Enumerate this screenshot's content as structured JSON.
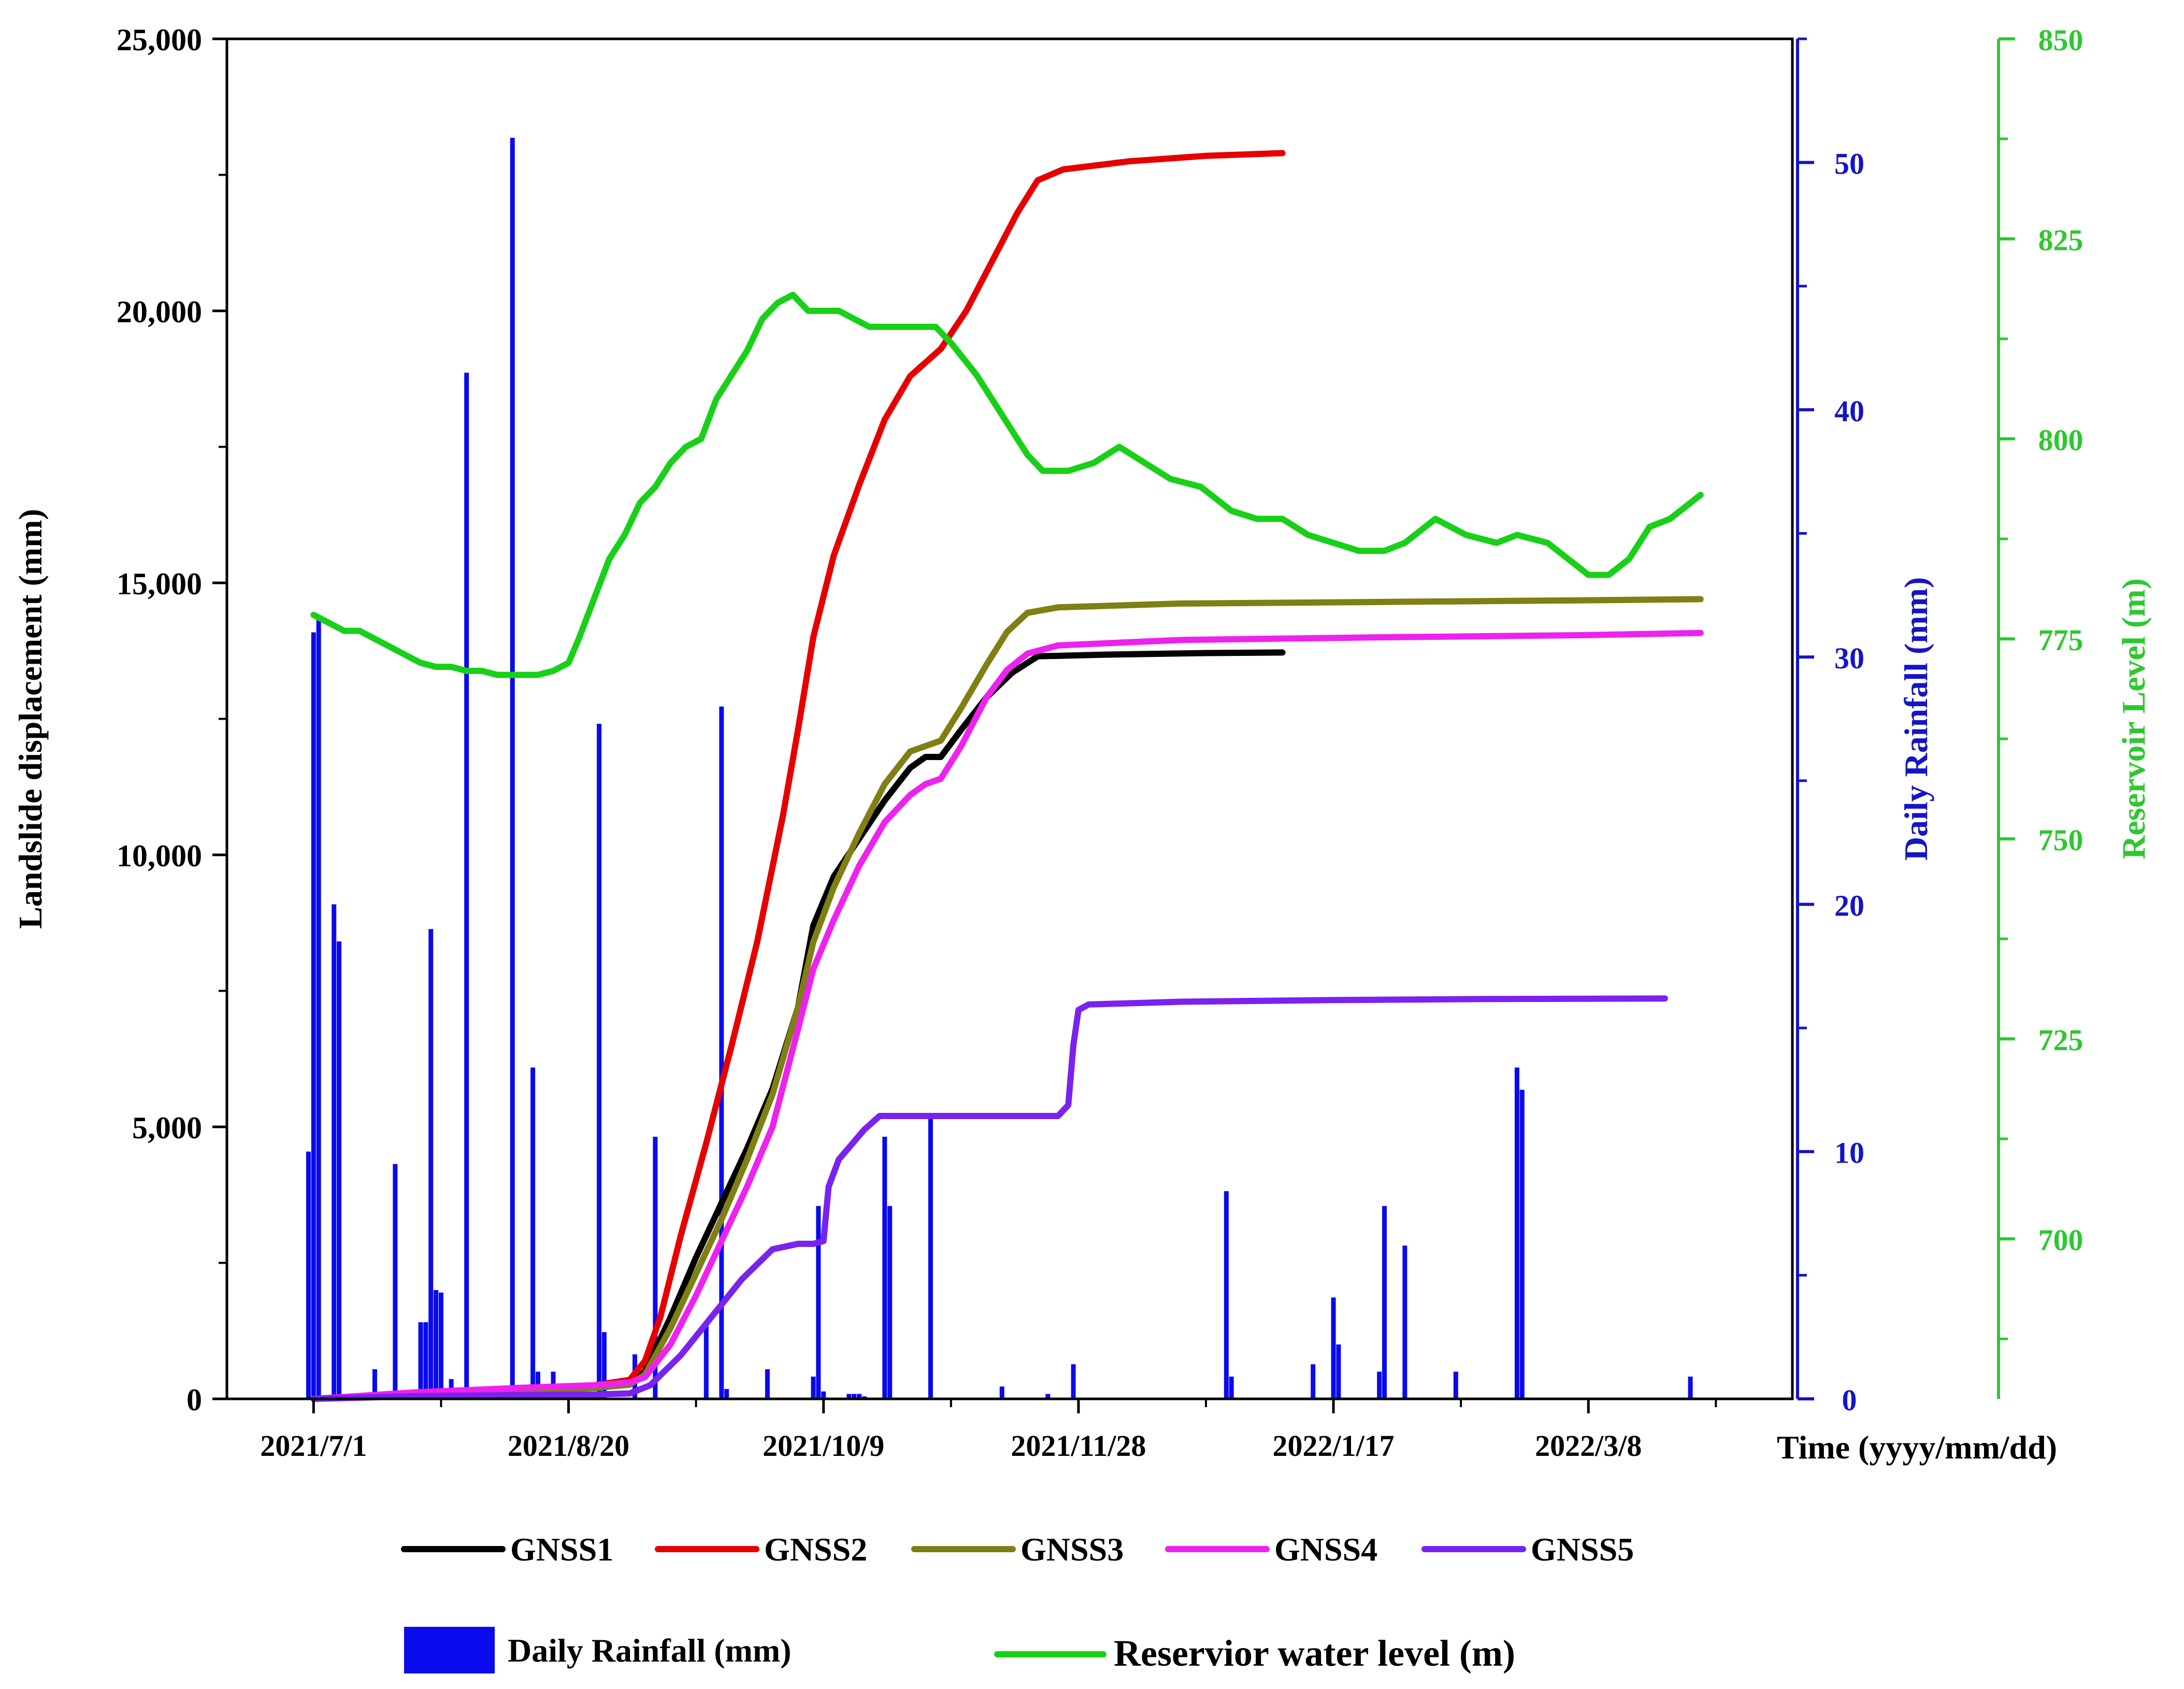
{
  "chart_data": {
    "type": "line",
    "title": "",
    "xlabel": "Time (yyyy/mm/dd)",
    "x_ticks": [
      {
        "label": "2021/7/1",
        "day": 0
      },
      {
        "label": "2021/8/20",
        "day": 50
      },
      {
        "label": "2021/10/9",
        "day": 100
      },
      {
        "label": "2021/11/28",
        "day": 150
      },
      {
        "label": "2022/1/17",
        "day": 200
      },
      {
        "label": "2022/3/8",
        "day": 250
      }
    ],
    "xlim_days": [
      -17,
      290
    ],
    "y_axes": {
      "displacement": {
        "label": "Landslide displacement (mm)",
        "ylim": [
          0,
          25000
        ],
        "ticks": [
          0,
          5000,
          10000,
          15000,
          20000,
          25000
        ],
        "tick_labels": [
          "0",
          "5,000",
          "10,000",
          "15,000",
          "20,000",
          "25,000"
        ],
        "color": "#000000"
      },
      "rainfall": {
        "label": "Daily Rainfall (mm)",
        "ylim": [
          0,
          55
        ],
        "ticks": [
          0,
          10,
          20,
          30,
          40,
          50
        ],
        "color": "#1414c8"
      },
      "reservoir": {
        "label": "Reservoir Level (m)",
        "ylim": [
          680,
          850
        ],
        "ticks": [
          700,
          725,
          750,
          775,
          800,
          825,
          850
        ],
        "color": "#2ec82e"
      }
    },
    "series": [
      {
        "name": "GNSS1",
        "axis": "displacement",
        "color": "#000000",
        "points": [
          [
            0,
            0
          ],
          [
            20,
            100
          ],
          [
            40,
            180
          ],
          [
            55,
            230
          ],
          [
            62,
            300
          ],
          [
            65,
            500
          ],
          [
            70,
            1500
          ],
          [
            75,
            2600
          ],
          [
            80,
            3600
          ],
          [
            85,
            4600
          ],
          [
            90,
            5700
          ],
          [
            95,
            7200
          ],
          [
            98,
            8700
          ],
          [
            102,
            9600
          ],
          [
            107,
            10300
          ],
          [
            112,
            11000
          ],
          [
            117,
            11600
          ],
          [
            120,
            11800
          ],
          [
            123,
            11800
          ],
          [
            127,
            12300
          ],
          [
            132,
            12900
          ],
          [
            137,
            13350
          ],
          [
            142,
            13650
          ],
          [
            155,
            13680
          ],
          [
            175,
            13710
          ],
          [
            190,
            13720
          ]
        ]
      },
      {
        "name": "GNSS2",
        "axis": "displacement",
        "color": "#e60000",
        "points": [
          [
            0,
            0
          ],
          [
            20,
            100
          ],
          [
            40,
            200
          ],
          [
            55,
            250
          ],
          [
            62,
            350
          ],
          [
            65,
            700
          ],
          [
            68,
            1500
          ],
          [
            72,
            3000
          ],
          [
            77,
            4700
          ],
          [
            82,
            6500
          ],
          [
            87,
            8400
          ],
          [
            92,
            10700
          ],
          [
            95,
            12300
          ],
          [
            98,
            14000
          ],
          [
            102,
            15500
          ],
          [
            107,
            16800
          ],
          [
            112,
            18000
          ],
          [
            117,
            18800
          ],
          [
            123,
            19300
          ],
          [
            128,
            20000
          ],
          [
            133,
            20900
          ],
          [
            138,
            21800
          ],
          [
            142,
            22400
          ],
          [
            147,
            22600
          ],
          [
            160,
            22750
          ],
          [
            175,
            22850
          ],
          [
            190,
            22900
          ]
        ]
      },
      {
        "name": "GNSS3",
        "axis": "displacement",
        "color": "#7f7f14",
        "points": [
          [
            0,
            0
          ],
          [
            20,
            80
          ],
          [
            40,
            150
          ],
          [
            55,
            200
          ],
          [
            62,
            260
          ],
          [
            65,
            450
          ],
          [
            70,
            1300
          ],
          [
            75,
            2300
          ],
          [
            80,
            3300
          ],
          [
            85,
            4400
          ],
          [
            90,
            5600
          ],
          [
            95,
            7200
          ],
          [
            98,
            8400
          ],
          [
            102,
            9400
          ],
          [
            107,
            10400
          ],
          [
            112,
            11300
          ],
          [
            117,
            11900
          ],
          [
            120,
            12000
          ],
          [
            123,
            12100
          ],
          [
            127,
            12700
          ],
          [
            132,
            13500
          ],
          [
            136,
            14100
          ],
          [
            140,
            14450
          ],
          [
            146,
            14550
          ],
          [
            170,
            14620
          ],
          [
            210,
            14650
          ],
          [
            250,
            14680
          ],
          [
            272,
            14700
          ]
        ]
      },
      {
        "name": "GNSS4",
        "axis": "displacement",
        "color": "#ee22ee",
        "points": [
          [
            0,
            0
          ],
          [
            20,
            120
          ],
          [
            40,
            200
          ],
          [
            55,
            250
          ],
          [
            62,
            300
          ],
          [
            65,
            400
          ],
          [
            70,
            1000
          ],
          [
            75,
            1900
          ],
          [
            80,
            2900
          ],
          [
            85,
            3900
          ],
          [
            90,
            5000
          ],
          [
            95,
            6800
          ],
          [
            98,
            7900
          ],
          [
            102,
            8800
          ],
          [
            107,
            9800
          ],
          [
            112,
            10600
          ],
          [
            117,
            11100
          ],
          [
            120,
            11300
          ],
          [
            123,
            11400
          ],
          [
            127,
            12000
          ],
          [
            132,
            12900
          ],
          [
            136,
            13400
          ],
          [
            140,
            13700
          ],
          [
            146,
            13850
          ],
          [
            170,
            13950
          ],
          [
            210,
            14000
          ],
          [
            250,
            14040
          ],
          [
            272,
            14080
          ]
        ]
      },
      {
        "name": "GNSS5",
        "axis": "displacement",
        "color": "#7a22ee",
        "points": [
          [
            0,
            0
          ],
          [
            20,
            50
          ],
          [
            40,
            70
          ],
          [
            55,
            80
          ],
          [
            62,
            100
          ],
          [
            66,
            250
          ],
          [
            72,
            800
          ],
          [
            78,
            1500
          ],
          [
            84,
            2200
          ],
          [
            90,
            2750
          ],
          [
            95,
            2850
          ],
          [
            98,
            2850
          ],
          [
            100,
            2900
          ],
          [
            101,
            3900
          ],
          [
            103,
            4400
          ],
          [
            108,
            4950
          ],
          [
            111,
            5200
          ],
          [
            146,
            5200
          ],
          [
            148,
            5400
          ],
          [
            149,
            6500
          ],
          [
            150,
            7150
          ],
          [
            152,
            7250
          ],
          [
            170,
            7300
          ],
          [
            200,
            7330
          ],
          [
            230,
            7350
          ],
          [
            265,
            7360
          ]
        ]
      },
      {
        "name": "Reservior water level (m)",
        "axis": "reservoir",
        "color": "#18d018",
        "points": [
          [
            0,
            778
          ],
          [
            3,
            777
          ],
          [
            6,
            776
          ],
          [
            9,
            776
          ],
          [
            12,
            775
          ],
          [
            15,
            774
          ],
          [
            18,
            773
          ],
          [
            21,
            772
          ],
          [
            24,
            771.5
          ],
          [
            27,
            771.5
          ],
          [
            30,
            771
          ],
          [
            33,
            771
          ],
          [
            36,
            770.5
          ],
          [
            40,
            770.5
          ],
          [
            44,
            770.5
          ],
          [
            47,
            771
          ],
          [
            50,
            772
          ],
          [
            52,
            775
          ],
          [
            55,
            780
          ],
          [
            58,
            785
          ],
          [
            61,
            788
          ],
          [
            64,
            792
          ],
          [
            67,
            794
          ],
          [
            70,
            797
          ],
          [
            73,
            799
          ],
          [
            76,
            800
          ],
          [
            79,
            805
          ],
          [
            82,
            808
          ],
          [
            85,
            811
          ],
          [
            88,
            815
          ],
          [
            91,
            817
          ],
          [
            94,
            818
          ],
          [
            97,
            816
          ],
          [
            100,
            816
          ],
          [
            103,
            816
          ],
          [
            106,
            815
          ],
          [
            109,
            814
          ],
          [
            114,
            814
          ],
          [
            119,
            814
          ],
          [
            122,
            814
          ],
          [
            125,
            812
          ],
          [
            130,
            808
          ],
          [
            135,
            803
          ],
          [
            140,
            798
          ],
          [
            143,
            796
          ],
          [
            148,
            796
          ],
          [
            153,
            797
          ],
          [
            158,
            799
          ],
          [
            163,
            797
          ],
          [
            168,
            795
          ],
          [
            174,
            794
          ],
          [
            180,
            791
          ],
          [
            185,
            790
          ],
          [
            190,
            790
          ],
          [
            195,
            788
          ],
          [
            200,
            787
          ],
          [
            205,
            786
          ],
          [
            210,
            786
          ],
          [
            214,
            787
          ],
          [
            220,
            790
          ],
          [
            226,
            788
          ],
          [
            232,
            787
          ],
          [
            236,
            788
          ],
          [
            242,
            787
          ],
          [
            246,
            785
          ],
          [
            250,
            783
          ],
          [
            254,
            783
          ],
          [
            258,
            785
          ],
          [
            262,
            789
          ],
          [
            266,
            790
          ],
          [
            270,
            792
          ],
          [
            272,
            793
          ]
        ]
      }
    ],
    "rainfall": {
      "name": "Daily Rainfall (mm)",
      "axis": "rainfall",
      "color": "#0a0aee",
      "bars": [
        [
          -1,
          10
        ],
        [
          0,
          31
        ],
        [
          1,
          31.5
        ],
        [
          4,
          20
        ],
        [
          5,
          18.5
        ],
        [
          12,
          1.2
        ],
        [
          16,
          9.5
        ],
        [
          17,
          0.3
        ],
        [
          21,
          3.1
        ],
        [
          22,
          3.1
        ],
        [
          23,
          19
        ],
        [
          24,
          4.4
        ],
        [
          25,
          4.3
        ],
        [
          27,
          0.8
        ],
        [
          30,
          41.5
        ],
        [
          39,
          51
        ],
        [
          43,
          13.4
        ],
        [
          44,
          1.1
        ],
        [
          47,
          1.1
        ],
        [
          48,
          0.6
        ],
        [
          52,
          0.4
        ],
        [
          56,
          27.3
        ],
        [
          57,
          2.7
        ],
        [
          63,
          1.8
        ],
        [
          67,
          10.6
        ],
        [
          77,
          3
        ],
        [
          80,
          28
        ],
        [
          81,
          0.4
        ],
        [
          89,
          1.2
        ],
        [
          98,
          0.9
        ],
        [
          99,
          7.8
        ],
        [
          100,
          0.3
        ],
        [
          105,
          0.2
        ],
        [
          106,
          0.2
        ],
        [
          107,
          0.2
        ],
        [
          108,
          0.1
        ],
        [
          112,
          10.6
        ],
        [
          113,
          7.8
        ],
        [
          121,
          11.5
        ],
        [
          135,
          0.5
        ],
        [
          144,
          0.2
        ],
        [
          149,
          1.4
        ],
        [
          179,
          8.4
        ],
        [
          180,
          0.9
        ],
        [
          196,
          1.4
        ],
        [
          200,
          4.1
        ],
        [
          201,
          2.2
        ],
        [
          209,
          1.1
        ],
        [
          210,
          7.8
        ],
        [
          214,
          6.2
        ],
        [
          224,
          1.1
        ],
        [
          236,
          13.4
        ],
        [
          237,
          12.5
        ],
        [
          270,
          0.9
        ]
      ]
    },
    "legend": {
      "placement": "bottom",
      "items": [
        {
          "label": "GNSS1",
          "color": "#000000",
          "kind": "line"
        },
        {
          "label": "GNSS2",
          "color": "#e60000",
          "kind": "line"
        },
        {
          "label": "GNSS3",
          "color": "#7f7f14",
          "kind": "line"
        },
        {
          "label": "GNSS4",
          "color": "#ee22ee",
          "kind": "line"
        },
        {
          "label": "GNSS5",
          "color": "#7a22ee",
          "kind": "line"
        },
        {
          "label": "Daily Rainfall (mm)",
          "color": "#0a0aee",
          "kind": "bar"
        },
        {
          "label": "Reservior water level (m)",
          "color": "#18d018",
          "kind": "line"
        }
      ]
    }
  }
}
